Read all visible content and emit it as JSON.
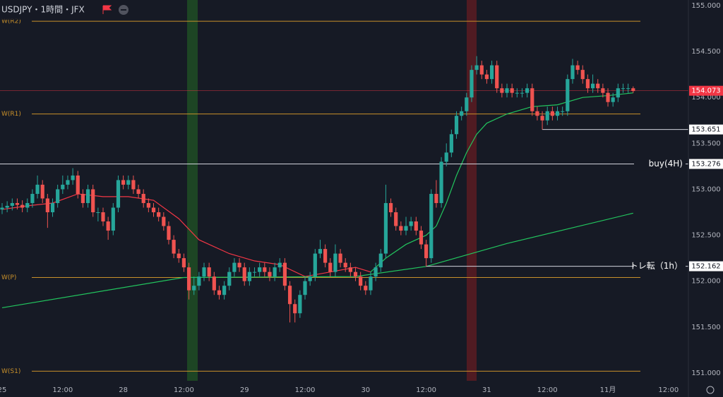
{
  "chart_data": {
    "type": "candlestick",
    "title": "USDJPY・1時間・JFX",
    "up_color": "#26a69a",
    "down_color": "#ef5350",
    "xlim": [
      -0.42,
      135.94
    ],
    "ylim": [
      150.915,
      155.061
    ],
    "yticks": [
      {
        "value": 155,
        "label": "155.000"
      },
      {
        "value": 154.5,
        "label": "154.500"
      },
      {
        "value": 154,
        "label": "154.000"
      },
      {
        "value": 153.5,
        "label": "153.500"
      },
      {
        "value": 153,
        "label": "153.000"
      },
      {
        "value": 152.5,
        "label": "152.500"
      },
      {
        "value": 152,
        "label": "152.000"
      },
      {
        "value": 151.5,
        "label": "151.500"
      },
      {
        "value": 151,
        "label": "151.000"
      }
    ],
    "xticks": [
      {
        "value": 0,
        "label": "25"
      },
      {
        "value": 12,
        "label": "12:00"
      },
      {
        "value": 24,
        "label": "28"
      },
      {
        "value": 36,
        "label": "12:00"
      },
      {
        "value": 48,
        "label": "29"
      },
      {
        "value": 60,
        "label": "12:00"
      },
      {
        "value": 72,
        "label": "30"
      },
      {
        "value": 84,
        "label": "12:00"
      },
      {
        "value": 96,
        "label": "31"
      },
      {
        "value": 108,
        "label": "12:00"
      },
      {
        "value": 120,
        "label": "11月"
      },
      {
        "value": 132,
        "label": "12:00"
      }
    ],
    "open": [
      152.78,
      152.8,
      152.82,
      152.85,
      152.83,
      152.8,
      152.85,
      152.95,
      153.05,
      152.9,
      152.75,
      152.85,
      153.0,
      153.05,
      153.1,
      153.15,
      152.95,
      152.85,
      153.0,
      152.75,
      152.75,
      152.65,
      152.55,
      152.8,
      153.1,
      153.05,
      153.1,
      153.0,
      152.95,
      152.85,
      152.8,
      152.75,
      152.7,
      152.6,
      152.45,
      152.3,
      152.25,
      152.15,
      151.9,
      151.95,
      152.05,
      152.15,
      152.05,
      151.9,
      151.85,
      151.95,
      152.1,
      152.2,
      152.15,
      152.0,
      152.1,
      152.1,
      152.15,
      152.1,
      152.05,
      152.15,
      152.2,
      151.95,
      151.75,
      151.65,
      151.85,
      152.0,
      152.05,
      152.3,
      152.35,
      152.2,
      152.1,
      152.3,
      152.2,
      152.15,
      152.1,
      152.05,
      151.95,
      151.9,
      152.05,
      152.15,
      152.3,
      152.85,
      152.75,
      152.6,
      152.55,
      152.6,
      152.65,
      152.55,
      152.4,
      152.25,
      152.95,
      152.85,
      153.3,
      153.4,
      153.6,
      153.8,
      153.85,
      154.0,
      154.3,
      154.35,
      154.25,
      154.2,
      154.35,
      154.1,
      154.05,
      154.1,
      154.05,
      154.05,
      154.05,
      154.1,
      153.85,
      153.8,
      153.75,
      153.85,
      153.8,
      153.85,
      153.85,
      154.2,
      154.35,
      154.3,
      154.2,
      154.1,
      154.15,
      154.1,
      154.05,
      153.95,
      154.0,
      154.1,
      154.1,
      154.1
    ],
    "close": [
      152.8,
      152.82,
      152.85,
      152.83,
      152.8,
      152.85,
      152.95,
      153.05,
      152.9,
      152.75,
      152.85,
      153.0,
      153.05,
      153.1,
      153.15,
      152.95,
      152.85,
      153.0,
      152.75,
      152.75,
      152.65,
      152.55,
      152.8,
      153.1,
      153.05,
      153.1,
      153.0,
      152.95,
      152.85,
      152.8,
      152.75,
      152.7,
      152.6,
      152.45,
      152.3,
      152.25,
      152.15,
      151.9,
      151.95,
      152.05,
      152.15,
      152.05,
      151.9,
      151.85,
      151.95,
      152.1,
      152.2,
      152.15,
      152.0,
      152.1,
      152.1,
      152.15,
      152.1,
      152.05,
      152.15,
      152.2,
      151.95,
      151.75,
      151.65,
      151.85,
      152.0,
      152.05,
      152.3,
      152.35,
      152.2,
      152.1,
      152.3,
      152.2,
      152.15,
      152.1,
      152.05,
      151.95,
      151.9,
      152.05,
      152.15,
      152.3,
      152.85,
      152.75,
      152.6,
      152.55,
      152.6,
      152.65,
      152.55,
      152.4,
      152.25,
      152.95,
      152.85,
      153.3,
      153.4,
      153.6,
      153.8,
      153.85,
      154.0,
      154.3,
      154.35,
      154.25,
      154.2,
      154.35,
      154.1,
      154.05,
      154.1,
      154.05,
      154.05,
      154.05,
      154.1,
      153.85,
      153.8,
      153.75,
      153.85,
      153.8,
      153.85,
      153.85,
      154.2,
      154.35,
      154.3,
      154.2,
      154.1,
      154.15,
      154.1,
      154.05,
      153.95,
      154.0,
      154.1,
      154.1,
      154.1,
      154.07
    ],
    "high": [
      152.85,
      152.87,
      152.9,
      152.9,
      152.88,
      152.9,
      153.0,
      153.15,
      153.1,
      152.95,
      152.9,
      153.05,
      153.15,
      153.15,
      153.23,
      153.2,
      153.0,
      153.05,
      153.05,
      152.8,
      152.8,
      152.7,
      152.85,
      153.15,
      153.15,
      153.15,
      153.15,
      153.05,
      153.0,
      152.9,
      152.85,
      152.8,
      152.75,
      152.65,
      152.5,
      152.35,
      152.3,
      152.2,
      152.05,
      152.1,
      152.2,
      152.2,
      152.1,
      151.95,
      152.0,
      152.15,
      152.25,
      152.25,
      152.2,
      152.15,
      152.15,
      152.2,
      152.2,
      152.15,
      152.2,
      152.25,
      152.25,
      152.0,
      151.8,
      151.9,
      152.05,
      152.1,
      152.35,
      152.45,
      152.4,
      152.25,
      152.4,
      152.35,
      152.25,
      152.2,
      152.15,
      152.1,
      152.0,
      152.1,
      152.2,
      152.35,
      153.05,
      152.9,
      152.8,
      152.65,
      152.7,
      152.7,
      152.7,
      152.6,
      152.45,
      153.0,
      153.1,
      153.35,
      153.5,
      153.65,
      153.85,
      153.9,
      154.05,
      154.35,
      154.45,
      154.4,
      154.3,
      154.4,
      154.4,
      154.15,
      154.15,
      154.15,
      154.1,
      154.1,
      154.15,
      154.15,
      153.9,
      153.85,
      153.9,
      153.9,
      153.9,
      153.9,
      154.25,
      154.42,
      154.4,
      154.35,
      154.25,
      154.25,
      154.2,
      154.15,
      154.1,
      154.05,
      154.15,
      154.15,
      154.15,
      154.12
    ],
    "low": [
      152.73,
      152.75,
      152.77,
      152.78,
      152.75,
      152.75,
      152.8,
      152.9,
      152.85,
      152.58,
      152.7,
      152.8,
      152.95,
      153.0,
      153.05,
      152.9,
      152.8,
      152.8,
      152.7,
      152.65,
      152.6,
      152.45,
      152.5,
      152.75,
      153.0,
      153.0,
      152.95,
      152.9,
      152.8,
      152.75,
      152.7,
      152.65,
      152.55,
      152.4,
      152.25,
      152.2,
      152.1,
      151.8,
      151.85,
      151.9,
      152.0,
      152.0,
      151.85,
      151.8,
      151.8,
      151.9,
      152.05,
      152.1,
      151.95,
      151.95,
      152.05,
      152.05,
      152.05,
      152.0,
      152.0,
      152.1,
      151.9,
      151.55,
      151.55,
      151.6,
      151.8,
      151.95,
      152.0,
      152.25,
      152.15,
      152.05,
      152.05,
      152.15,
      152.1,
      152.05,
      152.0,
      151.9,
      151.85,
      151.85,
      152.0,
      152.1,
      152.25,
      152.7,
      152.55,
      152.5,
      152.5,
      152.55,
      152.5,
      152.35,
      152.16,
      152.2,
      152.8,
      152.8,
      153.25,
      153.35,
      153.55,
      153.75,
      153.8,
      153.95,
      154.25,
      154.2,
      154.15,
      154.15,
      154.05,
      154.0,
      154.0,
      154.0,
      154.0,
      154.0,
      154.0,
      153.8,
      153.75,
      153.65,
      153.7,
      153.75,
      153.75,
      153.8,
      153.8,
      154.15,
      154.25,
      154.15,
      154.05,
      154.05,
      154.05,
      154.0,
      153.9,
      153.9,
      153.95,
      154.05,
      154.05,
      154.05
    ],
    "series": [
      {
        "color": "#f23645",
        "x": [
          0,
          5,
          10,
          15,
          20,
          25,
          30,
          35,
          39,
          45,
          50,
          55,
          60,
          65,
          70,
          73
        ],
        "values": [
          152.78,
          152.82,
          152.85,
          152.95,
          152.92,
          152.92,
          152.88,
          152.68,
          152.45,
          152.3,
          152.22,
          152.18,
          152.05,
          152.1,
          152.15,
          152.1
        ]
      },
      {
        "color": "#22c55e",
        "x": [
          73,
          76,
          80,
          84,
          86,
          88,
          90,
          92,
          94,
          96,
          100,
          105,
          110,
          115,
          120,
          125
        ],
        "values": [
          152.1,
          152.25,
          152.4,
          152.5,
          152.6,
          152.85,
          153.15,
          153.4,
          153.6,
          153.72,
          153.82,
          153.9,
          153.92,
          154.0,
          154.02,
          154.05
        ]
      },
      {
        "color": "#22c55e",
        "x": [
          0,
          36,
          70,
          84,
          100,
          125
        ],
        "values": [
          151.71,
          152.04,
          152.05,
          152.16,
          152.41,
          152.74
        ]
      }
    ],
    "levels": [
      {
        "name": "W(R2)",
        "value": 154.83
      },
      {
        "name": "W(R1)",
        "value": 153.82
      },
      {
        "name": "W(P)",
        "value": 152.04
      },
      {
        "name": "W(S1)",
        "value": 151.02
      }
    ],
    "level_color": "#c8902a",
    "markers": [
      {
        "label": "buy(4H)",
        "value": 153.276,
        "from": -0.42
      },
      {
        "label": "トレ転（1h）",
        "value": 152.162,
        "from": 84
      },
      {
        "value": 153.651,
        "from": 107
      }
    ],
    "last_price": 154.073
  }
}
